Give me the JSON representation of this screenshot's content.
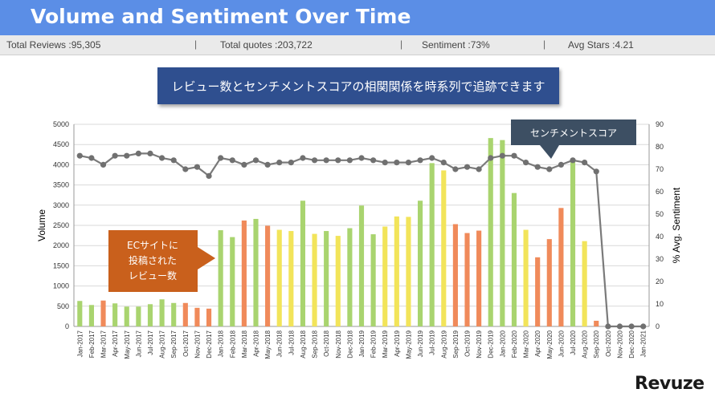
{
  "header": {
    "title": "Volume and Sentiment Over Time"
  },
  "stats": {
    "total_reviews": "Total Reviews :95,305",
    "total_quotes": "Total quotes :203,722",
    "sentiment": "Sentiment :73%",
    "avg_stars": "Avg Stars :4.21",
    "separator": "|"
  },
  "banner": {
    "text": "レビュー数とセンチメントスコアの相関関係を時系列で追跡できます"
  },
  "callouts": {
    "sentiment_score": "センチメントスコア",
    "ec_reviews_lines": [
      "ECサイトに",
      "投稿された",
      "レビュー数"
    ]
  },
  "logo": {
    "text": "Revuze"
  },
  "colors": {
    "header_bg": "#5b8ee6",
    "banner_bg": "#2f4f8f",
    "green": "#a9d46f",
    "yellow": "#f2e45a",
    "orange": "#f08a5a",
    "callout_orange": "#c9601c",
    "callout_dark": "#3d4f63",
    "line": "#7a7a7a"
  },
  "chart_data": {
    "type": "bar",
    "categories": [
      "Jan-2017",
      "Feb-2017",
      "Mar-2017",
      "Apr-2017",
      "May-2017",
      "Jun-2017",
      "Jul-2017",
      "Aug-2017",
      "Sep-2017",
      "Oct-2017",
      "Nov-2017",
      "Dec-2017",
      "Jan-2018",
      "Feb-2018",
      "Mar-2018",
      "Apr-2018",
      "May-2018",
      "Jun-2018",
      "Jul-2018",
      "Aug-2018",
      "Sep-2018",
      "Oct-2018",
      "Nov-2018",
      "Dec-2018",
      "Jan-2019",
      "Feb-2019",
      "Mar-2019",
      "Apr-2019",
      "May-2019",
      "Jun-2019",
      "Jul-2019",
      "Aug-2019",
      "Sep-2019",
      "Oct-2019",
      "Nov-2019",
      "Dec-2019",
      "Jan-2020",
      "Feb-2020",
      "Mar-2020",
      "Apr-2020",
      "May-2020",
      "Jun-2020",
      "Jul-2020",
      "Aug-2020",
      "Sep-2020",
      "Oct-2020",
      "Nov-2020",
      "Dec-2020",
      "Jan-2021"
    ],
    "series": [
      {
        "values": [
          630,
          530,
          640,
          570,
          490,
          490,
          550,
          670,
          580,
          580,
          460,
          440,
          2380,
          2210,
          2620,
          2660,
          2490,
          2390,
          2360,
          3110,
          2290,
          2360,
          2240,
          2430,
          2990,
          2280,
          2470,
          2720,
          2710,
          3110,
          4040,
          3860,
          2530,
          2310,
          2370,
          4660,
          4610,
          3300,
          2390,
          1710,
          2160,
          2930,
          4090,
          2110,
          140,
          0,
          0,
          0,
          0
        ],
        "colors": [
          "green",
          "green",
          "orange",
          "green",
          "green",
          "green",
          "green",
          "green",
          "green",
          "orange",
          "orange",
          "orange",
          "green",
          "green",
          "orange",
          "green",
          "orange",
          "yellow",
          "yellow",
          "green",
          "yellow",
          "green",
          "yellow",
          "green",
          "green",
          "green",
          "yellow",
          "yellow",
          "yellow",
          "green",
          "green",
          "yellow",
          "orange",
          "orange",
          "orange",
          "green",
          "green",
          "green",
          "yellow",
          "orange",
          "orange",
          "orange",
          "green",
          "yellow",
          "orange",
          "green",
          "green",
          "green",
          "green"
        ]
      },
      {
        "values": [
          76,
          75,
          72,
          76,
          76,
          77,
          77,
          75,
          74,
          70,
          71,
          67,
          75,
          74,
          72,
          74,
          72,
          73,
          73,
          75,
          74,
          74,
          74,
          74,
          75,
          74,
          73,
          73,
          73,
          74,
          75,
          73,
          70,
          71,
          70,
          75,
          76,
          76,
          73,
          71,
          70,
          72,
          74,
          73,
          69,
          0,
          0,
          0,
          0
        ]
      }
    ],
    "xlabel": "",
    "ylabel": "Volume",
    "y2label": "% Avg. Sentiment",
    "ylim": [
      0,
      5000
    ],
    "y2lim": [
      0,
      90
    ],
    "yticks": [
      0,
      500,
      1000,
      1500,
      2000,
      2500,
      3000,
      3500,
      4000,
      4500,
      5000
    ],
    "y2ticks": [
      0,
      10,
      20,
      30,
      40,
      50,
      60,
      70,
      80,
      90
    ],
    "grid": true
  }
}
